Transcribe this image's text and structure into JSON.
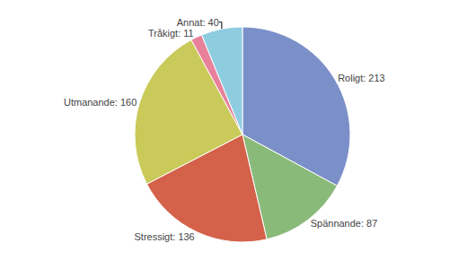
{
  "chart_data": {
    "type": "pie",
    "categories": [
      "Roligt",
      "Spännande",
      "Stressigt",
      "Utmanande",
      "Tråkigt",
      "Annat"
    ],
    "values": [
      213,
      87,
      136,
      160,
      11,
      40
    ],
    "value_labels": [
      "Roligt: 213",
      "Spännande: 87",
      "Stressigt: 136",
      "Utmanande: 160",
      "Tråkigt: 11",
      "Annat: 40"
    ],
    "colors": [
      "#7b8fc8",
      "#8aba7a",
      "#d4614a",
      "#caca5a",
      "#e8819a",
      "#8ecde0"
    ],
    "data_labels": true
  }
}
